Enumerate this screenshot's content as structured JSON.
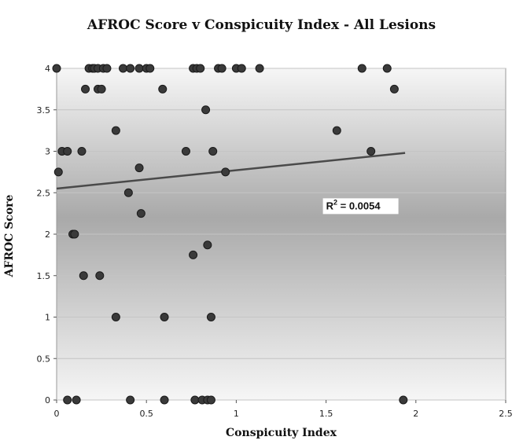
{
  "chart_data": {
    "type": "scatter",
    "title": "AFROC Score v Conspicuity Index - All Lesions",
    "xlabel": "Conspicuity Index",
    "ylabel": "AFROC Score",
    "xlim": [
      0,
      2.5
    ],
    "ylim": [
      0,
      4
    ],
    "xticks": [
      "0",
      "0.5",
      "1",
      "1.5",
      "2",
      "2.5"
    ],
    "yticks": [
      "0",
      "0.5",
      "1",
      "1.5",
      "2",
      "2.5",
      "3",
      "3.5",
      "4"
    ],
    "grid": "horizontal",
    "trendline": {
      "type": "linear",
      "x": [
        0,
        1.94
      ],
      "y": [
        2.55,
        2.98
      ]
    },
    "annotation": {
      "r2_prefix": "R",
      "r2_sup": "2",
      "r2_suffix": " = 0.0054",
      "x": 1.5,
      "y": 2.3
    },
    "x": [
      0.0,
      0.18,
      0.2,
      0.21,
      0.23,
      0.26,
      0.28,
      0.37,
      0.41,
      0.46,
      0.5,
      0.52,
      0.76,
      0.78,
      0.8,
      0.9,
      0.92,
      1.0,
      1.03,
      1.13,
      1.7,
      1.84,
      0.16,
      0.23,
      0.25,
      0.59,
      1.88,
      0.83,
      0.33,
      1.56,
      0.01,
      0.03,
      0.06,
      0.14,
      0.72,
      0.87,
      1.75,
      0.46,
      0.94,
      0.4,
      0.47,
      0.09,
      0.1,
      0.15,
      0.24,
      0.76,
      0.84,
      0.33,
      0.6,
      0.86,
      0.06,
      0.11,
      0.41,
      0.6,
      0.77,
      0.81,
      0.84,
      0.86,
      1.93
    ],
    "y": [
      4,
      4,
      4,
      4,
      4,
      4,
      4,
      4,
      4,
      4,
      4,
      4,
      4,
      4,
      4,
      4,
      4,
      4,
      4,
      4,
      4,
      4,
      3.75,
      3.75,
      3.75,
      3.75,
      3.75,
      3.5,
      3.25,
      3.25,
      2.75,
      3,
      3,
      3,
      3,
      3,
      3,
      2.8,
      2.75,
      2.5,
      2.25,
      2,
      2,
      1.5,
      1.5,
      1.75,
      1.87,
      1,
      1,
      1,
      0,
      0,
      0,
      0,
      0,
      0,
      0,
      0,
      0
    ]
  }
}
